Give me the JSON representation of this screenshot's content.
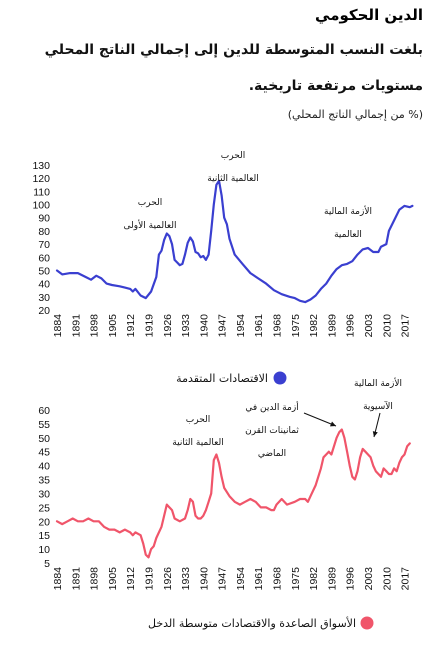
{
  "header": {
    "title": "الدين الحكومي",
    "subtitle_line1": "بلغت النسب المتوسطة للدين إلى إجمالي الناتج المحلي",
    "subtitle_line2": "مستويات مرتفعة تاريخية.",
    "unit": "(% من إجمالي الناتج المحلي)"
  },
  "colors": {
    "advanced": "#3a3fd0",
    "emerging": "#f0556a"
  },
  "chart_data": [
    {
      "type": "line",
      "title": "",
      "xlabel": "",
      "ylabel": "",
      "xlim": [
        1884,
        2021
      ],
      "ylim": [
        20,
        130
      ],
      "y_ticks": [
        20,
        30,
        40,
        50,
        60,
        70,
        80,
        90,
        100,
        110,
        120,
        130
      ],
      "x_ticks": [
        1884,
        1891,
        1898,
        1905,
        1912,
        1919,
        1926,
        1933,
        1940,
        1947,
        1954,
        1961,
        1968,
        1975,
        1982,
        1989,
        1996,
        2003,
        2010,
        2017
      ],
      "grid": false,
      "legend": {
        "position": "bottom",
        "label": "الاقتصادات المتقدمة"
      },
      "annotations": [
        {
          "lines": [
            "الحرب",
            "العالمية الأولى"
          ]
        },
        {
          "lines": [
            "الحرب",
            "العالمية الثانية"
          ]
        },
        {
          "lines": [
            "الأزمة المالية",
            "العالمية"
          ]
        }
      ],
      "series": [
        {
          "name": "الاقتصادات المتقدمة",
          "color": "#3a3fd0",
          "points": [
            [
              1884,
              50
            ],
            [
              1886,
              47
            ],
            [
              1889,
              48
            ],
            [
              1892,
              48
            ],
            [
              1895,
              45
            ],
            [
              1897,
              43
            ],
            [
              1899,
              46
            ],
            [
              1901,
              44
            ],
            [
              1903,
              40
            ],
            [
              1905,
              39
            ],
            [
              1908,
              38
            ],
            [
              1910,
              37
            ],
            [
              1912,
              36
            ],
            [
              1913,
              34
            ],
            [
              1914,
              36
            ],
            [
              1916,
              31
            ],
            [
              1918,
              29
            ],
            [
              1920,
              34
            ],
            [
              1922,
              45
            ],
            [
              1923,
              62
            ],
            [
              1924,
              65
            ],
            [
              1925,
              73
            ],
            [
              1926,
              78
            ],
            [
              1927,
              76
            ],
            [
              1928,
              70
            ],
            [
              1929,
              58
            ],
            [
              1930,
              56
            ],
            [
              1931,
              54
            ],
            [
              1932,
              55
            ],
            [
              1933,
              62
            ],
            [
              1934,
              71
            ],
            [
              1935,
              75
            ],
            [
              1936,
              72
            ],
            [
              1937,
              64
            ],
            [
              1938,
              63
            ],
            [
              1939,
              60
            ],
            [
              1940,
              61
            ],
            [
              1941,
              58
            ],
            [
              1942,
              62
            ],
            [
              1943,
              80
            ],
            [
              1944,
              100
            ],
            [
              1945,
              115
            ],
            [
              1946,
              118
            ],
            [
              1947,
              107
            ],
            [
              1948,
              90
            ],
            [
              1949,
              85
            ],
            [
              1950,
              74
            ],
            [
              1952,
              62
            ],
            [
              1955,
              55
            ],
            [
              1958,
              48
            ],
            [
              1961,
              44
            ],
            [
              1964,
              40
            ],
            [
              1967,
              35
            ],
            [
              1970,
              32
            ],
            [
              1973,
              30
            ],
            [
              1975,
              29
            ],
            [
              1977,
              27
            ],
            [
              1979,
              26
            ],
            [
              1981,
              28
            ],
            [
              1983,
              31
            ],
            [
              1985,
              36
            ],
            [
              1987,
              40
            ],
            [
              1989,
              46
            ],
            [
              1991,
              51
            ],
            [
              1993,
              54
            ],
            [
              1995,
              55
            ],
            [
              1997,
              57
            ],
            [
              1999,
              62
            ],
            [
              2001,
              66
            ],
            [
              2003,
              67
            ],
            [
              2005,
              64
            ],
            [
              2007,
              64
            ],
            [
              2008,
              68
            ],
            [
              2010,
              70
            ],
            [
              2011,
              80
            ],
            [
              2013,
              88
            ],
            [
              2015,
              96
            ],
            [
              2017,
              99
            ],
            [
              2019,
              98
            ],
            [
              2020,
              99
            ]
          ]
        }
      ]
    },
    {
      "type": "line",
      "title": "",
      "xlabel": "",
      "ylabel": "",
      "xlim": [
        1884,
        2021
      ],
      "ylim": [
        5,
        60
      ],
      "y_ticks": [
        5,
        10,
        15,
        20,
        25,
        30,
        35,
        40,
        45,
        50,
        55,
        60
      ],
      "x_ticks": [
        1884,
        1891,
        1898,
        1905,
        1912,
        1919,
        1926,
        1933,
        1940,
        1947,
        1954,
        1961,
        1968,
        1975,
        1982,
        1989,
        1996,
        2003,
        2010,
        2017
      ],
      "grid": false,
      "legend": {
        "position": "bottom",
        "label": "الأسواق الصاعدة والاقتصادات متوسطة الدخل"
      },
      "annotations": [
        {
          "lines": [
            "الحرب",
            "العالمية الثانية"
          ]
        },
        {
          "lines": [
            "أزمة الدين في",
            "ثمانينات القرن",
            "الماضي"
          ]
        },
        {
          "lines": [
            "الأزمة المالية",
            "الآسيوية"
          ]
        }
      ],
      "series": [
        {
          "name": "الأسواق الصاعدة والاقتصادات متوسطة الدخل",
          "color": "#f0556a",
          "points": [
            [
              1884,
              20
            ],
            [
              1886,
              19
            ],
            [
              1888,
              20
            ],
            [
              1890,
              21
            ],
            [
              1892,
              20
            ],
            [
              1894,
              20
            ],
            [
              1896,
              21
            ],
            [
              1898,
              20
            ],
            [
              1900,
              20
            ],
            [
              1902,
              18
            ],
            [
              1904,
              17
            ],
            [
              1906,
              17
            ],
            [
              1908,
              16
            ],
            [
              1910,
              17
            ],
            [
              1912,
              16
            ],
            [
              1913,
              15
            ],
            [
              1914,
              16
            ],
            [
              1916,
              15
            ],
            [
              1917,
              12
            ],
            [
              1918,
              8
            ],
            [
              1919,
              7
            ],
            [
              1920,
              10
            ],
            [
              1921,
              11
            ],
            [
              1922,
              14
            ],
            [
              1924,
              18
            ],
            [
              1926,
              26
            ],
            [
              1927,
              25
            ],
            [
              1928,
              24
            ],
            [
              1929,
              21
            ],
            [
              1931,
              20
            ],
            [
              1933,
              21
            ],
            [
              1934,
              24
            ],
            [
              1935,
              28
            ],
            [
              1936,
              27
            ],
            [
              1937,
              22
            ],
            [
              1938,
              21
            ],
            [
              1939,
              21
            ],
            [
              1940,
              22
            ],
            [
              1941,
              24
            ],
            [
              1942,
              27
            ],
            [
              1943,
              30
            ],
            [
              1944,
              42
            ],
            [
              1945,
              44
            ],
            [
              1946,
              41
            ],
            [
              1947,
              36
            ],
            [
              1948,
              32
            ],
            [
              1950,
              29
            ],
            [
              1952,
              27
            ],
            [
              1954,
              26
            ],
            [
              1956,
              27
            ],
            [
              1958,
              28
            ],
            [
              1960,
              27
            ],
            [
              1961,
              26
            ],
            [
              1962,
              25
            ],
            [
              1964,
              25
            ],
            [
              1966,
              24
            ],
            [
              1967,
              24
            ],
            [
              1968,
              26
            ],
            [
              1970,
              28
            ],
            [
              1972,
              26
            ],
            [
              1975,
              27
            ],
            [
              1977,
              28
            ],
            [
              1979,
              28
            ],
            [
              1980,
              27
            ],
            [
              1981,
              29
            ],
            [
              1983,
              33
            ],
            [
              1985,
              39
            ],
            [
              1986,
              43
            ],
            [
              1987,
              44
            ],
            [
              1988,
              45
            ],
            [
              1989,
              44
            ],
            [
              1990,
              47
            ],
            [
              1991,
              50
            ],
            [
              1992,
              52
            ],
            [
              1993,
              53
            ],
            [
              1994,
              50
            ],
            [
              1995,
              45
            ],
            [
              1996,
              40
            ],
            [
              1997,
              36
            ],
            [
              1998,
              35
            ],
            [
              1999,
              38
            ],
            [
              2000,
              43
            ],
            [
              2001,
              46
            ],
            [
              2002,
              45
            ],
            [
              2003,
              44
            ],
            [
              2004,
              43
            ],
            [
              2005,
              40
            ],
            [
              2006,
              38
            ],
            [
              2007,
              37
            ],
            [
              2008,
              36
            ],
            [
              2009,
              39
            ],
            [
              2010,
              38
            ],
            [
              2011,
              37
            ],
            [
              2012,
              37
            ],
            [
              2013,
              39
            ],
            [
              2014,
              38
            ],
            [
              2015,
              41
            ],
            [
              2016,
              43
            ],
            [
              2017,
              44
            ],
            [
              2018,
              47
            ],
            [
              2019,
              48
            ]
          ]
        }
      ]
    }
  ]
}
